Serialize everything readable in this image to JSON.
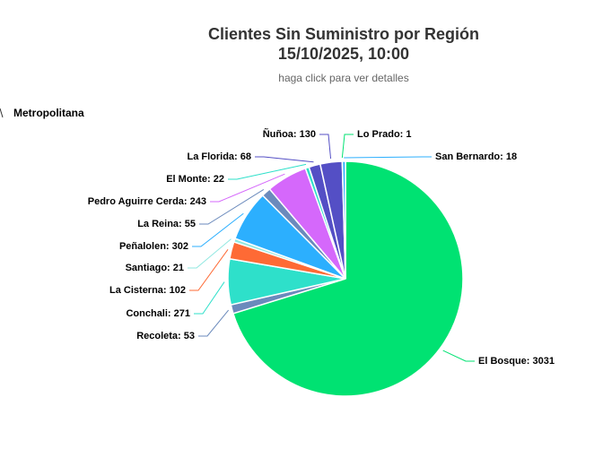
{
  "chart_data": {
    "type": "pie",
    "title": [
      "Clientes Sin Suministro por Región",
      "15/10/2025, 10:00"
    ],
    "subtitle": "haga click para ver detalles",
    "breadcrumb": "Metropolitana",
    "labels": [
      "El Bosque: 3031",
      "Recoleta: 53",
      "Conchali: 271",
      "La Cisterna: 102",
      "Santiago: 21",
      "Peñalolen: 302",
      "La Reina: 55",
      "Pedro Aguirre Cerda: 243",
      "El Monte: 22",
      "La Florida: 68",
      "Ñuñoa: 130",
      "Lo Prado: 1",
      "San Bernardo: 18"
    ],
    "values": [
      3031,
      53,
      271,
      102,
      21,
      302,
      55,
      243,
      22,
      68,
      130,
      1,
      18
    ],
    "colors": [
      "#00e272",
      "#6b8abc",
      "#2ee0ca",
      "#fe6a35",
      "#91e8e1",
      "#2caffe",
      "#6b8abc",
      "#d568fb",
      "#2ee0ca",
      "#544fc5",
      "#544fc5",
      "#00e272",
      "#2caffe"
    ]
  }
}
